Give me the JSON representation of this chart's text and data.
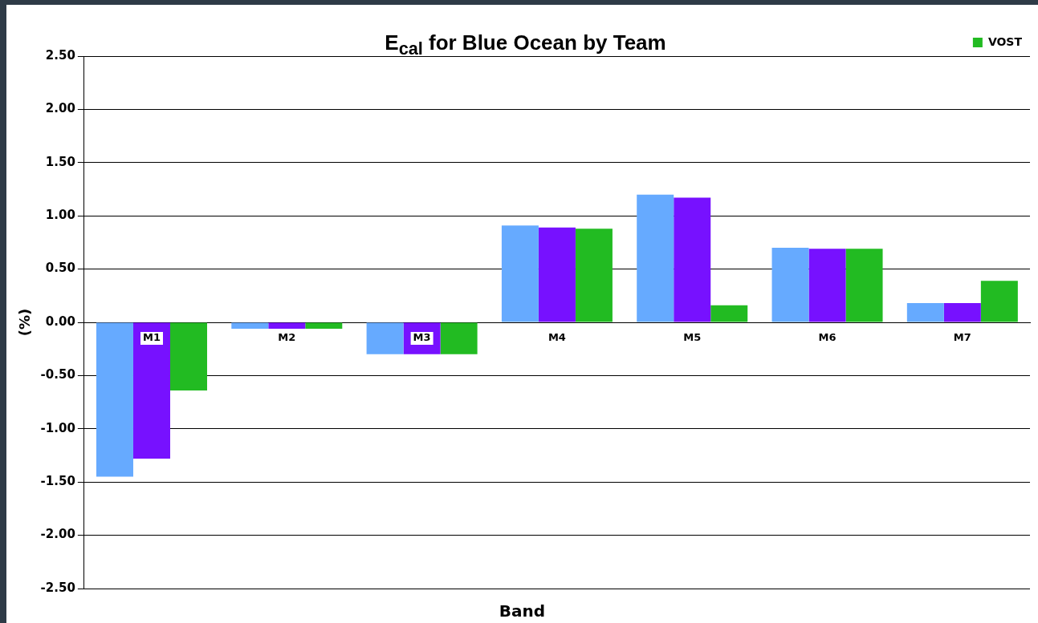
{
  "chart_data": {
    "type": "bar",
    "title": "E$_{cal}$ for Blue Ocean by Team",
    "xlabel": "Band",
    "ylabel": "(%)",
    "categories": [
      "M1",
      "M2",
      "M3",
      "M4",
      "M5",
      "M6",
      "M7"
    ],
    "series": [
      {
        "color": "#66aaff",
        "values": [
          -1.45,
          -0.06,
          -0.3,
          0.91,
          1.2,
          0.7,
          0.18
        ]
      },
      {
        "color": "#7711ff",
        "values": [
          -1.28,
          -0.06,
          -0.3,
          0.89,
          1.17,
          0.69,
          0.18
        ]
      },
      {
        "name": "VOST",
        "color": "#22bb22",
        "values": [
          -0.64,
          -0.06,
          -0.3,
          0.88,
          0.16,
          0.69,
          0.39
        ]
      }
    ],
    "ylim": [
      -2.5,
      2.5
    ],
    "yticks": [
      {
        "value": -2.5,
        "label": "-2.50"
      },
      {
        "value": -2,
        "label": "-2.00"
      },
      {
        "value": -1.5,
        "label": "-1.50"
      },
      {
        "value": -1,
        "label": "-1.00"
      },
      {
        "value": -0.5,
        "label": "-0.50"
      },
      {
        "value": 0,
        "label": "0.00"
      },
      {
        "value": 0.5,
        "label": "0.50"
      },
      {
        "value": 1,
        "label": "1.00"
      },
      {
        "value": 1.5,
        "label": "1.50"
      },
      {
        "value": 2,
        "label": "2.00"
      },
      {
        "value": 2.5,
        "label": "2.50"
      }
    ],
    "grid": "y",
    "legend": "top right"
  }
}
